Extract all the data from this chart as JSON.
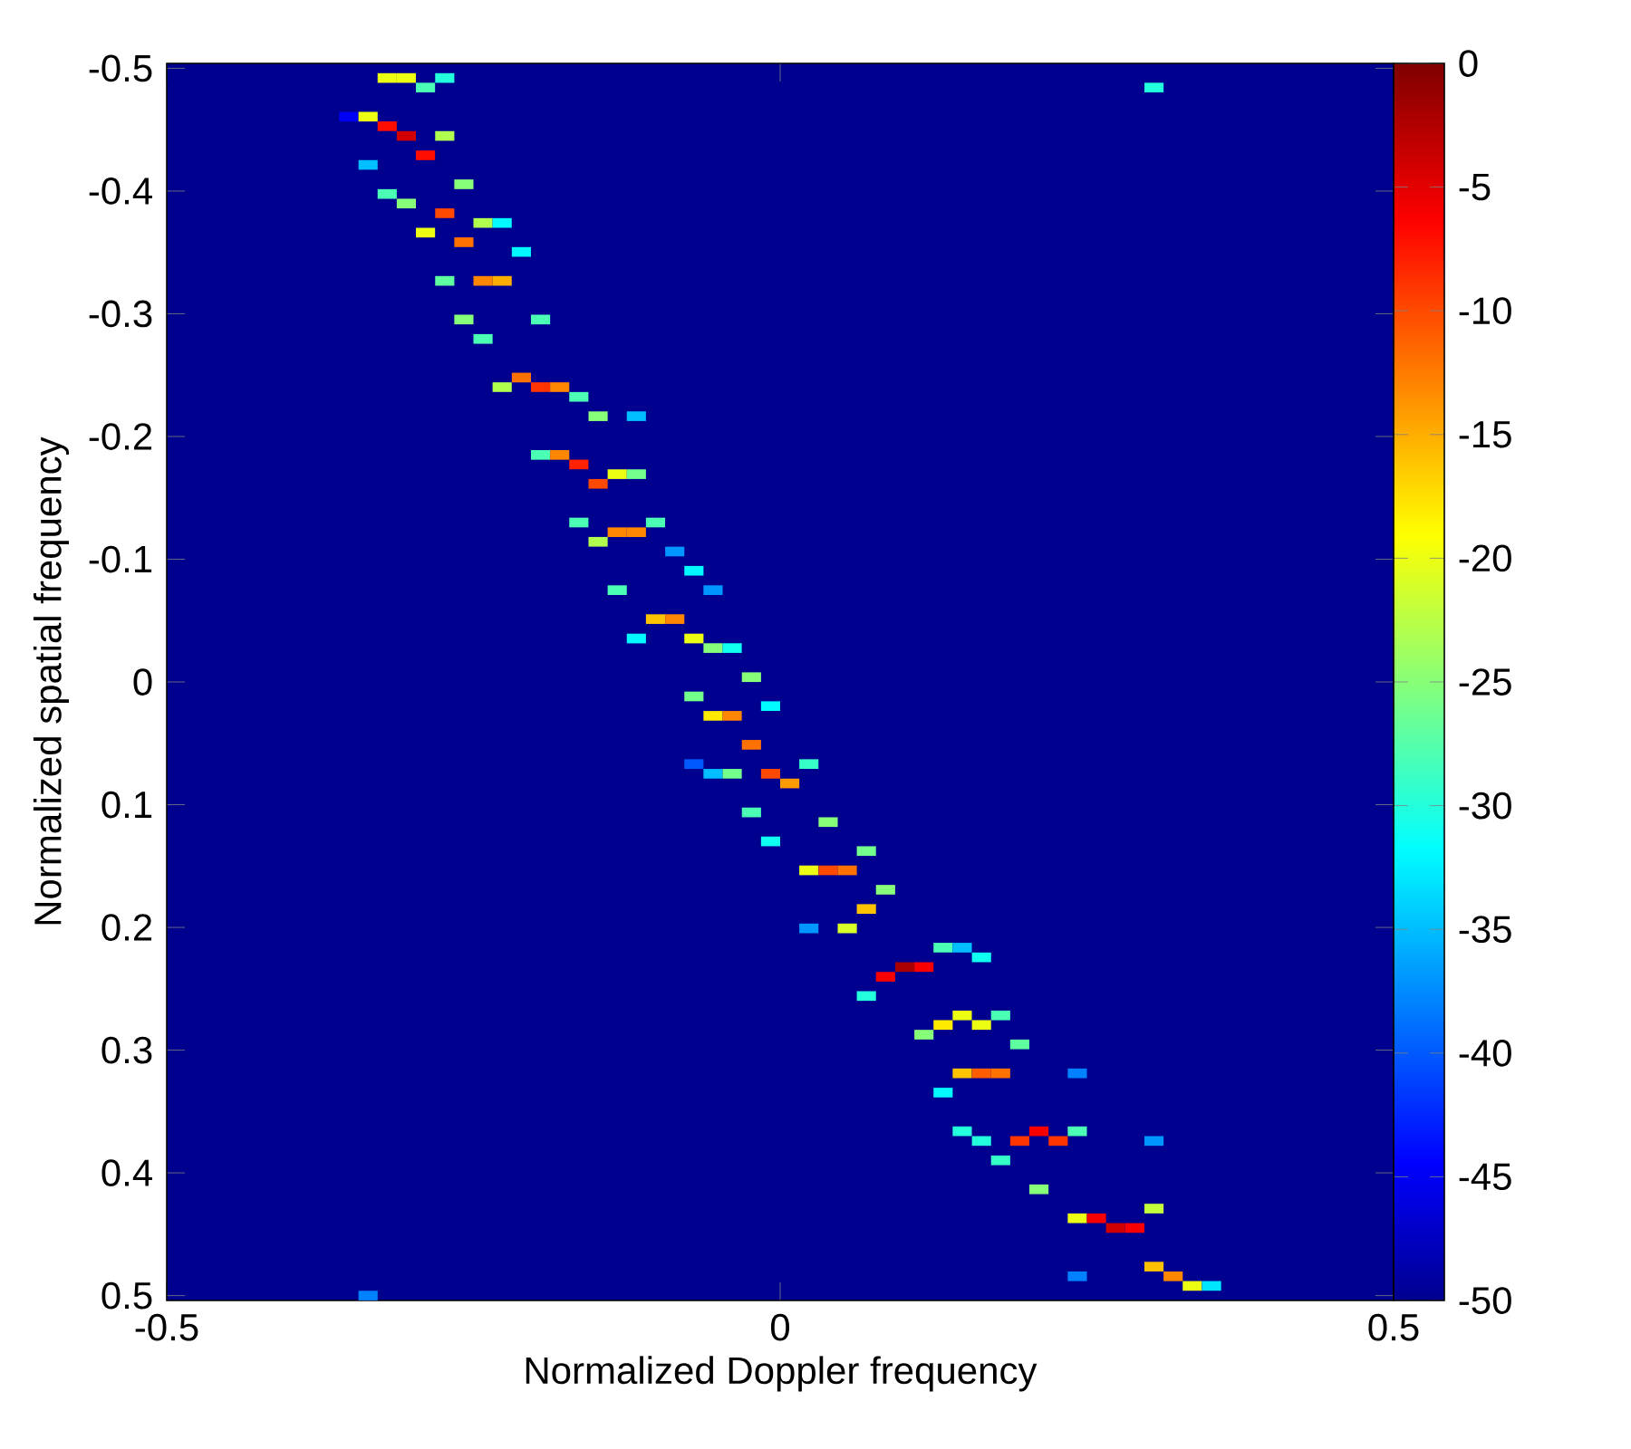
{
  "chart_data": {
    "type": "scatter",
    "xlabel": "Normalized Doppler frequency",
    "ylabel": "Normalized spatial frequency",
    "marker": "square",
    "xlim": [
      -0.5,
      0.5
    ],
    "ylim": [
      0.504,
      -0.504
    ],
    "xticks": [
      -0.5,
      0,
      0.5
    ],
    "yticks": [
      -0.5,
      -0.4,
      -0.3,
      -0.2,
      -0.1,
      0,
      0.1,
      0.2,
      0.3,
      0.4,
      0.5
    ],
    "clim": [
      -50,
      0
    ],
    "cticks": [
      -50,
      -45,
      -40,
      -35,
      -30,
      -25,
      -20,
      -15,
      -10,
      -5,
      0
    ],
    "x": [
      -0.3203,
      -0.3047,
      -0.2734,
      -0.2891,
      0.3047,
      -0.3516,
      -0.3359,
      -0.3203,
      -0.3047,
      -0.2734,
      -0.2891,
      -0.3359,
      -0.2578,
      -0.3203,
      -0.3047,
      -0.2734,
      -0.2422,
      -0.2266,
      -0.2891,
      -0.2578,
      -0.2109,
      -0.2734,
      -0.2422,
      -0.2266,
      -0.2578,
      -0.1953,
      -0.2422,
      -0.2109,
      -0.2266,
      -0.1953,
      -0.1797,
      -0.1641,
      -0.1484,
      -0.1172,
      -0.1953,
      -0.1797,
      -0.1641,
      -0.1328,
      -0.1172,
      -0.1484,
      -0.1641,
      -0.1016,
      -0.1328,
      -0.1172,
      -0.1484,
      -0.0859,
      -0.0703,
      -0.1328,
      -0.0547,
      -0.1016,
      -0.0859,
      -0.1172,
      -0.0703,
      -0.0547,
      -0.0391,
      -0.0234,
      -0.0703,
      -0.0078,
      -0.0547,
      -0.0391,
      -0.0234,
      -0.0703,
      0.0234,
      -0.0547,
      -0.0391,
      -0.0078,
      0.0078,
      -0.0234,
      0.0391,
      -0.0078,
      0.0703,
      0.0234,
      0.0391,
      0.0547,
      0.0859,
      0.0703,
      0.0234,
      0.0547,
      0.1328,
      0.1484,
      0.1641,
      0.1016,
      0.1172,
      0.0859,
      0.0703,
      0.1484,
      0.1797,
      0.1328,
      0.1641,
      0.1172,
      0.1953,
      0.1484,
      0.1641,
      0.1797,
      0.2422,
      0.1328,
      0.1484,
      0.2109,
      0.2422,
      0.1641,
      0.1953,
      0.2266,
      0.3047,
      0.1797,
      0.2109,
      0.2422,
      0.2578,
      0.3047,
      0.2734,
      0.2891,
      0.3047,
      0.2422,
      0.3203,
      0.3359,
      0.3516,
      -0.3359
    ],
    "values": [
      -0.4921,
      -0.4921,
      -0.4921,
      -0.4843,
      -0.4843,
      -0.4606,
      -0.4606,
      -0.4528,
      -0.4449,
      -0.4449,
      -0.4291,
      -0.4213,
      -0.4055,
      -0.3976,
      -0.3898,
      -0.3819,
      -0.374,
      -0.374,
      -0.3661,
      -0.3583,
      -0.3504,
      -0.3268,
      -0.3268,
      -0.3268,
      -0.2953,
      -0.2953,
      -0.2795,
      -0.248,
      -0.2402,
      -0.2402,
      -0.2402,
      -0.2323,
      -0.2165,
      -0.2165,
      -0.185,
      -0.185,
      -0.1772,
      -0.1693,
      -0.1693,
      -0.1614,
      -0.1299,
      -0.1299,
      -0.122,
      -0.122,
      -0.1142,
      -0.1063,
      -0.0906,
      -0.0748,
      -0.0748,
      -0.0512,
      -0.0512,
      -0.0354,
      -0.0354,
      -0.0276,
      -0.0276,
      -0.0039,
      0.0118,
      0.0197,
      0.0276,
      0.0276,
      0.0512,
      0.0669,
      0.0669,
      0.0748,
      0.0748,
      0.0748,
      0.0827,
      0.1063,
      0.1142,
      0.1299,
      0.1378,
      0.1535,
      0.1535,
      0.1535,
      0.1693,
      0.185,
      0.2008,
      0.2008,
      0.2165,
      0.2165,
      0.2244,
      0.2323,
      0.2323,
      0.2402,
      0.2559,
      0.2717,
      0.2717,
      0.2795,
      0.2795,
      0.2874,
      0.2953,
      0.3189,
      0.3189,
      0.3189,
      0.3189,
      0.3346,
      0.3661,
      0.3661,
      0.3661,
      0.374,
      0.374,
      0.374,
      0.374,
      0.3898,
      0.4134,
      0.437,
      0.437,
      0.4291,
      0.4449,
      0.4449,
      0.4764,
      0.4843,
      0.4843,
      0.4921,
      0.4921,
      0.5
    ],
    "cvalues": [
      -20,
      -20,
      -30,
      -28,
      -30,
      -45,
      -20,
      -7,
      -4,
      -23,
      -7,
      -35,
      -25,
      -28,
      -25,
      -10,
      -23,
      -32,
      -20,
      -12,
      -32,
      -27,
      -13,
      -15,
      -25,
      -28,
      -28,
      -12,
      -23,
      -9,
      -13,
      -28,
      -25,
      -35,
      -28,
      -13,
      -8,
      -20,
      -26,
      -10,
      -28,
      -28,
      -13,
      -13,
      -23,
      -37,
      -32,
      -28,
      -37,
      -16,
      -13,
      -32,
      -20,
      -25,
      -31,
      -25,
      -26,
      -32,
      -18,
      -13,
      -12,
      -40,
      -29,
      -35,
      -26,
      -10,
      -14,
      -28,
      -25,
      -31,
      -26,
      -20,
      -10,
      -12,
      -25,
      -16,
      -37,
      -21,
      -28,
      -35,
      -31,
      -2,
      -6,
      -6,
      -30,
      -20,
      -28,
      -18,
      -20,
      -25,
      -27,
      -16,
      -11,
      -12,
      -38,
      -32,
      -30,
      -6,
      -28,
      -30,
      -9,
      -9,
      -37,
      -29,
      -25,
      -20,
      -6,
      -22,
      -4,
      -6,
      -16,
      -38,
      -13,
      -20,
      -33,
      -38
    ]
  }
}
